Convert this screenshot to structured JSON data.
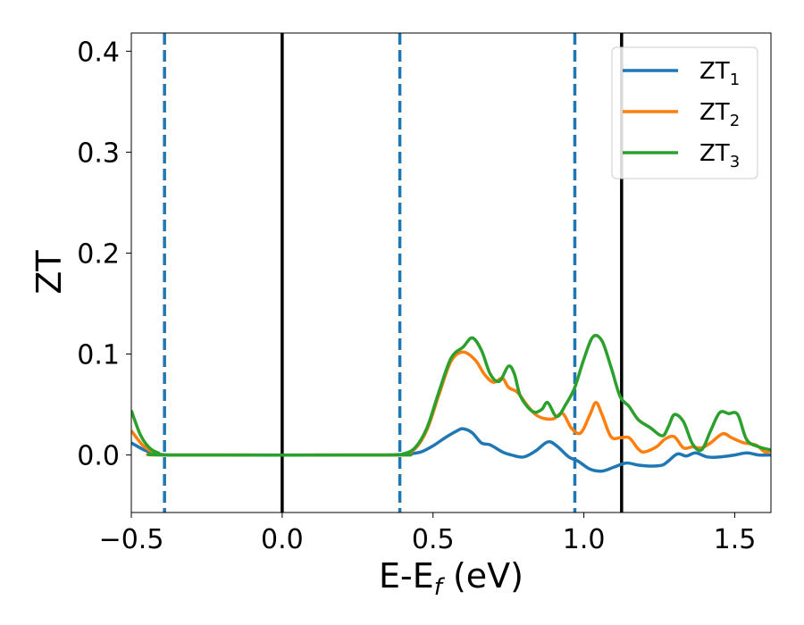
{
  "chart_data": {
    "type": "line",
    "xlabel_main": "E-E",
    "xlabel_sub": "f",
    "xlabel_unit": " (eV)",
    "ylabel": "ZT",
    "xlim": [
      -0.5,
      1.62
    ],
    "ylim": [
      -0.057,
      0.418
    ],
    "grid": false,
    "legend_position": "top-right",
    "x_ticks": [
      {
        "value": -0.5,
        "label": "−0.5"
      },
      {
        "value": 0.0,
        "label": "0.0"
      },
      {
        "value": 0.5,
        "label": "0.5"
      },
      {
        "value": 1.0,
        "label": "1.0"
      },
      {
        "value": 1.5,
        "label": "1.5"
      }
    ],
    "y_ticks": [
      {
        "value": 0.0,
        "label": "0.0"
      },
      {
        "value": 0.1,
        "label": "0.1"
      },
      {
        "value": 0.2,
        "label": "0.2"
      },
      {
        "value": 0.3,
        "label": "0.3"
      },
      {
        "value": 0.4,
        "label": "0.4"
      }
    ],
    "vlines": [
      {
        "x": -0.39,
        "style": "dashed",
        "color": "#1f77b4"
      },
      {
        "x": 0.0,
        "style": "solid",
        "color": "#000000"
      },
      {
        "x": 0.39,
        "style": "dashed",
        "color": "#1f77b4"
      },
      {
        "x": 0.97,
        "style": "dashed",
        "color": "#1f77b4"
      },
      {
        "x": 1.125,
        "style": "solid",
        "color": "#000000"
      }
    ],
    "series": [
      {
        "name": "ZT",
        "subscript": "1",
        "color": "#1f77b4",
        "points": [
          [
            -0.5,
            0.012
          ],
          [
            -0.45,
            0.004
          ],
          [
            -0.4,
            0.0005
          ],
          [
            -0.3,
            0.0
          ],
          [
            0.3,
            0.0
          ],
          [
            0.38,
            0.0003
          ],
          [
            0.42,
            0.001
          ],
          [
            0.46,
            0.003
          ],
          [
            0.5,
            0.009
          ],
          [
            0.54,
            0.017
          ],
          [
            0.58,
            0.024
          ],
          [
            0.6,
            0.026
          ],
          [
            0.63,
            0.022
          ],
          [
            0.66,
            0.012
          ],
          [
            0.69,
            0.01
          ],
          [
            0.73,
            0.003
          ],
          [
            0.76,
            0.0
          ],
          [
            0.8,
            -0.002
          ],
          [
            0.84,
            0.004
          ],
          [
            0.88,
            0.013
          ],
          [
            0.91,
            0.009
          ],
          [
            0.95,
            -0.002
          ],
          [
            0.98,
            -0.006
          ],
          [
            1.02,
            -0.014
          ],
          [
            1.06,
            -0.016
          ],
          [
            1.1,
            -0.012
          ],
          [
            1.14,
            -0.008
          ],
          [
            1.18,
            -0.01
          ],
          [
            1.22,
            -0.011
          ],
          [
            1.26,
            -0.01
          ],
          [
            1.28,
            -0.006
          ],
          [
            1.31,
            0.001
          ],
          [
            1.34,
            -0.001
          ],
          [
            1.37,
            0.002
          ],
          [
            1.41,
            -0.002
          ],
          [
            1.45,
            -0.002
          ],
          [
            1.5,
            0.0
          ],
          [
            1.54,
            0.002
          ],
          [
            1.58,
            0.0
          ],
          [
            1.62,
            0.0
          ]
        ]
      },
      {
        "name": "ZT",
        "subscript": "2",
        "color": "#ff7f0e",
        "points": [
          [
            -0.5,
            0.024
          ],
          [
            -0.46,
            0.009
          ],
          [
            -0.42,
            0.002
          ],
          [
            -0.38,
            0.0
          ],
          [
            0.36,
            0.0
          ],
          [
            0.4,
            0.001
          ],
          [
            0.44,
            0.006
          ],
          [
            0.48,
            0.025
          ],
          [
            0.52,
            0.06
          ],
          [
            0.56,
            0.093
          ],
          [
            0.6,
            0.102
          ],
          [
            0.64,
            0.094
          ],
          [
            0.67,
            0.08
          ],
          [
            0.7,
            0.072
          ],
          [
            0.73,
            0.076
          ],
          [
            0.75,
            0.067
          ],
          [
            0.78,
            0.062
          ],
          [
            0.81,
            0.05
          ],
          [
            0.84,
            0.04
          ],
          [
            0.87,
            0.036
          ],
          [
            0.9,
            0.036
          ],
          [
            0.93,
            0.041
          ],
          [
            0.96,
            0.026
          ],
          [
            0.99,
            0.022
          ],
          [
            1.02,
            0.04
          ],
          [
            1.04,
            0.052
          ],
          [
            1.06,
            0.04
          ],
          [
            1.09,
            0.018
          ],
          [
            1.12,
            0.017
          ],
          [
            1.15,
            0.017
          ],
          [
            1.18,
            0.006
          ],
          [
            1.2,
            0.003
          ],
          [
            1.24,
            0.008
          ],
          [
            1.27,
            0.016
          ],
          [
            1.3,
            0.018
          ],
          [
            1.33,
            0.007
          ],
          [
            1.36,
            0.008
          ],
          [
            1.39,
            0.007
          ],
          [
            1.42,
            0.012
          ],
          [
            1.46,
            0.021
          ],
          [
            1.49,
            0.017
          ],
          [
            1.53,
            0.012
          ],
          [
            1.57,
            0.01
          ],
          [
            1.6,
            0.003
          ],
          [
            1.62,
            0.004
          ]
        ]
      },
      {
        "name": "ZT",
        "subscript": "3",
        "color": "#2ca02c",
        "points": [
          [
            -0.5,
            0.044
          ],
          [
            -0.47,
            0.02
          ],
          [
            -0.44,
            0.007
          ],
          [
            -0.41,
            0.002
          ],
          [
            -0.38,
            0.0
          ],
          [
            0.36,
            0.0
          ],
          [
            0.4,
            0.001
          ],
          [
            0.44,
            0.007
          ],
          [
            0.48,
            0.027
          ],
          [
            0.52,
            0.063
          ],
          [
            0.56,
            0.096
          ],
          [
            0.6,
            0.107
          ],
          [
            0.63,
            0.116
          ],
          [
            0.66,
            0.104
          ],
          [
            0.69,
            0.08
          ],
          [
            0.72,
            0.073
          ],
          [
            0.75,
            0.088
          ],
          [
            0.77,
            0.08
          ],
          [
            0.79,
            0.058
          ],
          [
            0.83,
            0.043
          ],
          [
            0.86,
            0.045
          ],
          [
            0.88,
            0.052
          ],
          [
            0.91,
            0.038
          ],
          [
            0.94,
            0.05
          ],
          [
            0.97,
            0.067
          ],
          [
            1.0,
            0.095
          ],
          [
            1.03,
            0.117
          ],
          [
            1.06,
            0.113
          ],
          [
            1.09,
            0.087
          ],
          [
            1.12,
            0.058
          ],
          [
            1.15,
            0.048
          ],
          [
            1.18,
            0.035
          ],
          [
            1.22,
            0.027
          ],
          [
            1.26,
            0.019
          ],
          [
            1.28,
            0.028
          ],
          [
            1.3,
            0.04
          ],
          [
            1.33,
            0.033
          ],
          [
            1.36,
            0.011
          ],
          [
            1.39,
            0.005
          ],
          [
            1.42,
            0.024
          ],
          [
            1.45,
            0.042
          ],
          [
            1.48,
            0.041
          ],
          [
            1.51,
            0.04
          ],
          [
            1.54,
            0.015
          ],
          [
            1.58,
            0.008
          ],
          [
            1.62,
            0.005
          ]
        ]
      }
    ]
  }
}
